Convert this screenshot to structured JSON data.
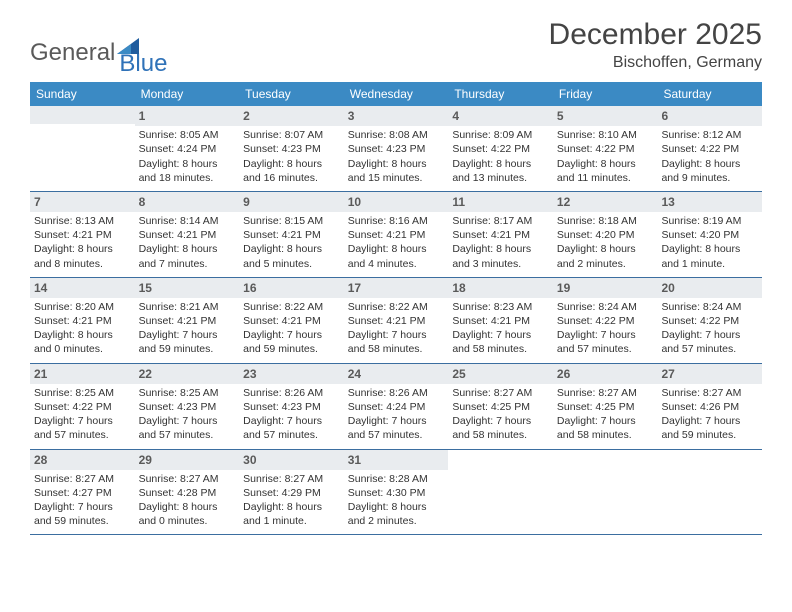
{
  "brand": {
    "name_a": "General",
    "name_b": "Blue"
  },
  "title": "December 2025",
  "location": "Bischoffen, Germany",
  "colors": {
    "header_bg": "#3b8ac4",
    "header_text": "#ffffff",
    "daynum_bg": "#e9ecef",
    "rule": "#3b6ea0",
    "brand_blue": "#2f72b8",
    "text": "#333333"
  },
  "day_headers": [
    "Sunday",
    "Monday",
    "Tuesday",
    "Wednesday",
    "Thursday",
    "Friday",
    "Saturday"
  ],
  "weeks": [
    [
      {
        "empty": true
      },
      {
        "day": "1",
        "sunrise": "Sunrise: 8:05 AM",
        "sunset": "Sunset: 4:24 PM",
        "daylight": "Daylight: 8 hours and 18 minutes."
      },
      {
        "day": "2",
        "sunrise": "Sunrise: 8:07 AM",
        "sunset": "Sunset: 4:23 PM",
        "daylight": "Daylight: 8 hours and 16 minutes."
      },
      {
        "day": "3",
        "sunrise": "Sunrise: 8:08 AM",
        "sunset": "Sunset: 4:23 PM",
        "daylight": "Daylight: 8 hours and 15 minutes."
      },
      {
        "day": "4",
        "sunrise": "Sunrise: 8:09 AM",
        "sunset": "Sunset: 4:22 PM",
        "daylight": "Daylight: 8 hours and 13 minutes."
      },
      {
        "day": "5",
        "sunrise": "Sunrise: 8:10 AM",
        "sunset": "Sunset: 4:22 PM",
        "daylight": "Daylight: 8 hours and 11 minutes."
      },
      {
        "day": "6",
        "sunrise": "Sunrise: 8:12 AM",
        "sunset": "Sunset: 4:22 PM",
        "daylight": "Daylight: 8 hours and 9 minutes."
      }
    ],
    [
      {
        "day": "7",
        "sunrise": "Sunrise: 8:13 AM",
        "sunset": "Sunset: 4:21 PM",
        "daylight": "Daylight: 8 hours and 8 minutes."
      },
      {
        "day": "8",
        "sunrise": "Sunrise: 8:14 AM",
        "sunset": "Sunset: 4:21 PM",
        "daylight": "Daylight: 8 hours and 7 minutes."
      },
      {
        "day": "9",
        "sunrise": "Sunrise: 8:15 AM",
        "sunset": "Sunset: 4:21 PM",
        "daylight": "Daylight: 8 hours and 5 minutes."
      },
      {
        "day": "10",
        "sunrise": "Sunrise: 8:16 AM",
        "sunset": "Sunset: 4:21 PM",
        "daylight": "Daylight: 8 hours and 4 minutes."
      },
      {
        "day": "11",
        "sunrise": "Sunrise: 8:17 AM",
        "sunset": "Sunset: 4:21 PM",
        "daylight": "Daylight: 8 hours and 3 minutes."
      },
      {
        "day": "12",
        "sunrise": "Sunrise: 8:18 AM",
        "sunset": "Sunset: 4:20 PM",
        "daylight": "Daylight: 8 hours and 2 minutes."
      },
      {
        "day": "13",
        "sunrise": "Sunrise: 8:19 AM",
        "sunset": "Sunset: 4:20 PM",
        "daylight": "Daylight: 8 hours and 1 minute."
      }
    ],
    [
      {
        "day": "14",
        "sunrise": "Sunrise: 8:20 AM",
        "sunset": "Sunset: 4:21 PM",
        "daylight": "Daylight: 8 hours and 0 minutes."
      },
      {
        "day": "15",
        "sunrise": "Sunrise: 8:21 AM",
        "sunset": "Sunset: 4:21 PM",
        "daylight": "Daylight: 7 hours and 59 minutes."
      },
      {
        "day": "16",
        "sunrise": "Sunrise: 8:22 AM",
        "sunset": "Sunset: 4:21 PM",
        "daylight": "Daylight: 7 hours and 59 minutes."
      },
      {
        "day": "17",
        "sunrise": "Sunrise: 8:22 AM",
        "sunset": "Sunset: 4:21 PM",
        "daylight": "Daylight: 7 hours and 58 minutes."
      },
      {
        "day": "18",
        "sunrise": "Sunrise: 8:23 AM",
        "sunset": "Sunset: 4:21 PM",
        "daylight": "Daylight: 7 hours and 58 minutes."
      },
      {
        "day": "19",
        "sunrise": "Sunrise: 8:24 AM",
        "sunset": "Sunset: 4:22 PM",
        "daylight": "Daylight: 7 hours and 57 minutes."
      },
      {
        "day": "20",
        "sunrise": "Sunrise: 8:24 AM",
        "sunset": "Sunset: 4:22 PM",
        "daylight": "Daylight: 7 hours and 57 minutes."
      }
    ],
    [
      {
        "day": "21",
        "sunrise": "Sunrise: 8:25 AM",
        "sunset": "Sunset: 4:22 PM",
        "daylight": "Daylight: 7 hours and 57 minutes."
      },
      {
        "day": "22",
        "sunrise": "Sunrise: 8:25 AM",
        "sunset": "Sunset: 4:23 PM",
        "daylight": "Daylight: 7 hours and 57 minutes."
      },
      {
        "day": "23",
        "sunrise": "Sunrise: 8:26 AM",
        "sunset": "Sunset: 4:23 PM",
        "daylight": "Daylight: 7 hours and 57 minutes."
      },
      {
        "day": "24",
        "sunrise": "Sunrise: 8:26 AM",
        "sunset": "Sunset: 4:24 PM",
        "daylight": "Daylight: 7 hours and 57 minutes."
      },
      {
        "day": "25",
        "sunrise": "Sunrise: 8:27 AM",
        "sunset": "Sunset: 4:25 PM",
        "daylight": "Daylight: 7 hours and 58 minutes."
      },
      {
        "day": "26",
        "sunrise": "Sunrise: 8:27 AM",
        "sunset": "Sunset: 4:25 PM",
        "daylight": "Daylight: 7 hours and 58 minutes."
      },
      {
        "day": "27",
        "sunrise": "Sunrise: 8:27 AM",
        "sunset": "Sunset: 4:26 PM",
        "daylight": "Daylight: 7 hours and 59 minutes."
      }
    ],
    [
      {
        "day": "28",
        "sunrise": "Sunrise: 8:27 AM",
        "sunset": "Sunset: 4:27 PM",
        "daylight": "Daylight: 7 hours and 59 minutes."
      },
      {
        "day": "29",
        "sunrise": "Sunrise: 8:27 AM",
        "sunset": "Sunset: 4:28 PM",
        "daylight": "Daylight: 8 hours and 0 minutes."
      },
      {
        "day": "30",
        "sunrise": "Sunrise: 8:27 AM",
        "sunset": "Sunset: 4:29 PM",
        "daylight": "Daylight: 8 hours and 1 minute."
      },
      {
        "day": "31",
        "sunrise": "Sunrise: 8:28 AM",
        "sunset": "Sunset: 4:30 PM",
        "daylight": "Daylight: 8 hours and 2 minutes."
      },
      {
        "empty": true,
        "blank": true
      },
      {
        "empty": true,
        "blank": true
      },
      {
        "empty": true,
        "blank": true
      }
    ]
  ]
}
